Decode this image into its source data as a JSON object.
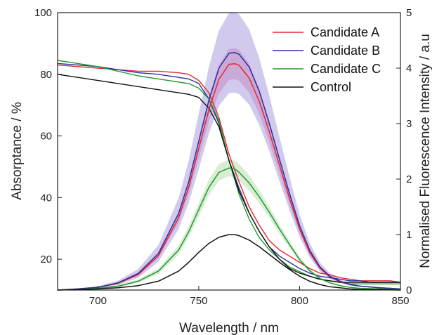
{
  "chart_data": {
    "type": "line",
    "xlabel": "Wavelength / nm",
    "ylabel_left": "Absorptance / %",
    "ylabel_right": "Normalised Fluorescence Intensity / a.u",
    "xlim": [
      680,
      850
    ],
    "ylim_left": [
      10,
      100
    ],
    "ylim_right": [
      0,
      5
    ],
    "x_ticks": [
      700,
      750,
      800,
      850
    ],
    "y_left_ticks": [
      20,
      40,
      60,
      80,
      100
    ],
    "y_right_ticks": [
      0,
      1,
      2,
      3,
      4,
      5
    ],
    "grid": false,
    "legend_position": "top-right",
    "series": [
      {
        "name": "Candidate A",
        "color": "#e8262d",
        "band_color": "#e07aa8",
        "absorptance": {
          "x": [
            680,
            690,
            700,
            710,
            720,
            730,
            740,
            745,
            750,
            755,
            760,
            765,
            770,
            775,
            780,
            785,
            790,
            795,
            800,
            805,
            810,
            815,
            820,
            825,
            830,
            835,
            840,
            845,
            850
          ],
          "y": [
            83,
            82.5,
            82,
            81.5,
            81,
            81,
            80.5,
            80,
            78,
            74,
            66,
            54,
            45,
            37,
            31,
            26,
            23,
            21,
            19,
            17,
            15.5,
            15,
            14,
            13.5,
            13,
            13,
            13,
            13,
            12.5
          ]
        },
        "fluorescence": {
          "x": [
            680,
            690,
            700,
            710,
            720,
            730,
            740,
            745,
            750,
            755,
            760,
            765,
            768,
            770,
            775,
            780,
            785,
            790,
            795,
            800,
            805,
            810,
            815,
            820,
            825,
            830,
            840,
            850
          ],
          "y": [
            0.0,
            0.02,
            0.05,
            0.12,
            0.28,
            0.62,
            1.3,
            1.85,
            2.55,
            3.25,
            3.8,
            4.07,
            4.08,
            4.05,
            3.82,
            3.4,
            2.85,
            2.25,
            1.65,
            1.1,
            0.68,
            0.4,
            0.24,
            0.15,
            0.1,
            0.07,
            0.04,
            0.02
          ]
        },
        "band_halfwidth": [
          0,
          0,
          0,
          0.01,
          0.02,
          0.04,
          0.08,
          0.12,
          0.17,
          0.22,
          0.26,
          0.28,
          0.28,
          0.28,
          0.26,
          0.23,
          0.19,
          0.15,
          0.11,
          0.07,
          0.05,
          0.03,
          0.02,
          0.01,
          0.01,
          0.01,
          0,
          0
        ]
      },
      {
        "name": "Candidate B",
        "color": "#2e2ea0",
        "band_color": "#9a8ad8",
        "absorptance": {
          "x": [
            680,
            690,
            700,
            710,
            720,
            730,
            740,
            745,
            750,
            755,
            760,
            765,
            770,
            775,
            780,
            785,
            790,
            795,
            800,
            805,
            810,
            815,
            820,
            825,
            830,
            835,
            840,
            845,
            850
          ],
          "y": [
            83.5,
            83,
            82.5,
            81.5,
            80.5,
            80,
            79,
            78.5,
            77,
            72,
            64,
            52,
            43,
            35,
            29,
            24,
            21,
            19,
            17,
            15.5,
            14.5,
            14,
            13.5,
            13,
            13,
            12.5,
            12.5,
            12.5,
            12.5
          ]
        },
        "fluorescence": {
          "x": [
            680,
            690,
            700,
            710,
            720,
            730,
            740,
            745,
            750,
            755,
            760,
            765,
            768,
            770,
            775,
            780,
            785,
            790,
            795,
            800,
            805,
            810,
            815,
            820,
            825,
            830,
            840,
            850
          ],
          "y": [
            0.0,
            0.02,
            0.05,
            0.13,
            0.3,
            0.66,
            1.38,
            1.95,
            2.68,
            3.42,
            4.0,
            4.27,
            4.28,
            4.25,
            4.02,
            3.58,
            3.0,
            2.36,
            1.74,
            1.16,
            0.72,
            0.42,
            0.25,
            0.16,
            0.1,
            0.07,
            0.04,
            0.02
          ]
        },
        "band_halfwidth": [
          0,
          0.01,
          0.02,
          0.04,
          0.08,
          0.15,
          0.28,
          0.38,
          0.5,
          0.6,
          0.68,
          0.72,
          0.72,
          0.72,
          0.68,
          0.6,
          0.5,
          0.4,
          0.3,
          0.2,
          0.13,
          0.08,
          0.05,
          0.03,
          0.02,
          0.01,
          0.01,
          0
        ]
      },
      {
        "name": "Candidate C",
        "color": "#1f9a2e",
        "band_color": "#a8d8a0",
        "absorptance": {
          "x": [
            680,
            690,
            700,
            710,
            720,
            730,
            740,
            745,
            750,
            755,
            760,
            765,
            770,
            775,
            780,
            785,
            790,
            795,
            800,
            805,
            810,
            815,
            820,
            825,
            830,
            835,
            840,
            845,
            850
          ],
          "y": [
            84.5,
            83.5,
            82.5,
            81,
            79.5,
            78.5,
            77.5,
            77,
            75.5,
            72,
            65,
            52,
            41,
            33,
            27,
            23,
            20,
            17.5,
            16,
            14.5,
            13.5,
            13,
            12.5,
            12,
            12,
            12,
            12,
            12,
            12
          ]
        },
        "fluorescence": {
          "x": [
            680,
            690,
            700,
            710,
            720,
            730,
            740,
            745,
            750,
            755,
            760,
            765,
            768,
            770,
            775,
            780,
            785,
            790,
            795,
            800,
            805,
            810,
            815,
            820,
            825,
            830,
            840,
            850
          ],
          "y": [
            0.0,
            0.01,
            0.03,
            0.07,
            0.16,
            0.34,
            0.72,
            1.05,
            1.45,
            1.85,
            2.12,
            2.2,
            2.18,
            2.12,
            1.93,
            1.68,
            1.4,
            1.1,
            0.82,
            0.55,
            0.35,
            0.21,
            0.13,
            0.08,
            0.05,
            0.03,
            0.02,
            0.01
          ]
        },
        "band_halfwidth": [
          0,
          0,
          0.01,
          0.02,
          0.03,
          0.05,
          0.08,
          0.1,
          0.12,
          0.14,
          0.15,
          0.15,
          0.15,
          0.15,
          0.14,
          0.12,
          0.1,
          0.08,
          0.06,
          0.04,
          0.03,
          0.02,
          0.01,
          0.01,
          0,
          0,
          0,
          0
        ]
      },
      {
        "name": "Control",
        "color": "#111111",
        "band_color": "",
        "absorptance": {
          "x": [
            680,
            690,
            700,
            710,
            720,
            730,
            740,
            745,
            750,
            755,
            760,
            765,
            770,
            775,
            780,
            785,
            790,
            795,
            800,
            805,
            810,
            815,
            820,
            825,
            830,
            835,
            840,
            845,
            850
          ],
          "y": [
            80,
            79,
            78,
            77,
            76,
            75,
            74,
            73.5,
            72.5,
            69,
            63,
            52,
            42,
            35,
            29,
            24,
            20,
            17,
            15.5,
            14.5,
            13.5,
            13,
            12.5,
            12.5,
            12.5,
            12.5,
            12.5,
            12.5,
            12.5
          ]
        },
        "fluorescence": {
          "x": [
            680,
            690,
            700,
            710,
            720,
            730,
            740,
            745,
            750,
            755,
            760,
            765,
            768,
            770,
            775,
            780,
            785,
            790,
            795,
            800,
            805,
            810,
            815,
            820,
            825,
            830,
            840,
            850
          ],
          "y": [
            0.0,
            0.01,
            0.02,
            0.04,
            0.08,
            0.16,
            0.34,
            0.5,
            0.68,
            0.84,
            0.95,
            1.0,
            1.0,
            0.98,
            0.9,
            0.78,
            0.64,
            0.5,
            0.37,
            0.25,
            0.16,
            0.1,
            0.06,
            0.04,
            0.02,
            0.01,
            0.01,
            0
          ]
        },
        "band_halfwidth": []
      }
    ]
  }
}
